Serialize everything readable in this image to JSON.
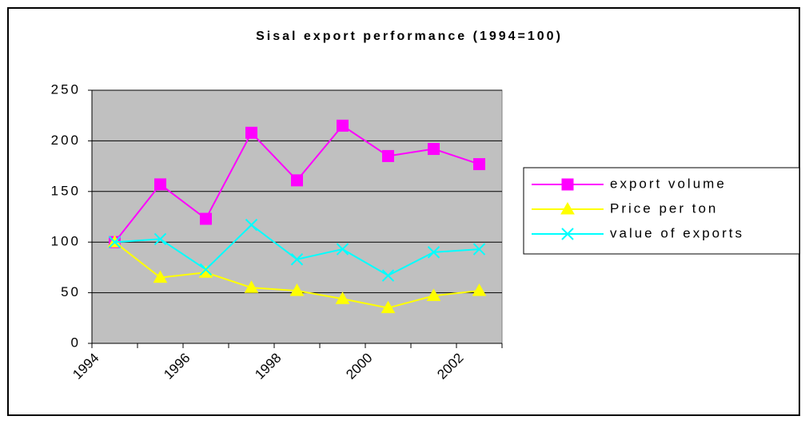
{
  "chart_data": {
    "type": "line",
    "title": "Sisal export performance (1994=100)",
    "categories": [
      "1994",
      null,
      "1996",
      null,
      "1998",
      null,
      "2000",
      null,
      "2002"
    ],
    "series": [
      {
        "name": "export volume",
        "color": "#ff00ff",
        "marker": "square",
        "values": [
          100,
          157,
          123,
          208,
          161,
          215,
          185,
          192,
          177
        ]
      },
      {
        "name": "Price per ton",
        "color": "#ffff00",
        "marker": "triangle",
        "values": [
          100,
          65,
          70,
          55,
          52,
          44,
          35,
          47,
          52
        ]
      },
      {
        "name": "value of exports",
        "color": "#00ffff",
        "marker": "x",
        "values": [
          100,
          103,
          73,
          117,
          83,
          93,
          67,
          90,
          93
        ]
      }
    ],
    "ylim": [
      0,
      250
    ],
    "yticks": [
      0,
      50,
      100,
      150,
      200,
      250
    ],
    "grid": true,
    "legend": "right"
  }
}
